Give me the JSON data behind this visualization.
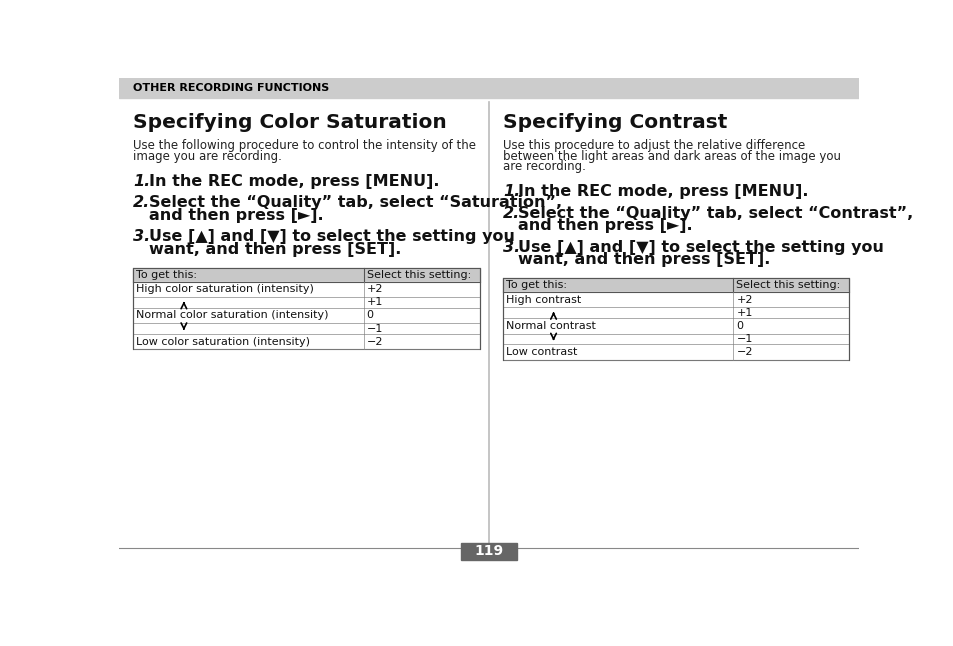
{
  "bg_color": "#ffffff",
  "header_bg": "#cccccc",
  "header_text": "OTHER RECORDING FUNCTIONS",
  "header_text_color": "#000000",
  "page_number": "119",
  "left_section": {
    "title": "Specifying Color Saturation",
    "intro_lines": [
      "Use the following procedure to control the intensity of the",
      "image you are recording."
    ],
    "steps": [
      {
        "num": "1.",
        "lines": [
          "In the REC mode, press [MENU]."
        ]
      },
      {
        "num": "2.",
        "lines": [
          "Select the “Quality” tab, select “Saturation”,",
          "and then press [►]."
        ]
      },
      {
        "num": "3.",
        "lines": [
          "Use [▲] and [▼] to select the setting you",
          "want, and then press [SET]."
        ]
      }
    ],
    "table_header": [
      "To get this:",
      "Select this setting:"
    ],
    "table_rows": [
      [
        "High color saturation (intensity)",
        "+2"
      ],
      [
        "arrow_up",
        "+1"
      ],
      [
        "Normal color saturation (intensity)",
        "0"
      ],
      [
        "arrow_down",
        "−1"
      ],
      [
        "Low color saturation (intensity)",
        "−2"
      ]
    ]
  },
  "right_section": {
    "title": "Specifying Contrast",
    "intro_lines": [
      "Use this procedure to adjust the relative difference",
      "between the light areas and dark areas of the image you",
      "are recording."
    ],
    "steps": [
      {
        "num": "1.",
        "lines": [
          "In the REC mode, press [MENU]."
        ]
      },
      {
        "num": "2.",
        "lines": [
          "Select the “Quality” tab, select “Contrast”,",
          "and then press [►]."
        ]
      },
      {
        "num": "3.",
        "lines": [
          "Use [▲] and [▼] to select the setting you",
          "want, and then press [SET]."
        ]
      }
    ],
    "table_header": [
      "To get this:",
      "Select this setting:"
    ],
    "table_rows": [
      [
        "High contrast",
        "+2"
      ],
      [
        "arrow_up",
        "+1"
      ],
      [
        "Normal contrast",
        "0"
      ],
      [
        "arrow_down",
        "−1"
      ],
      [
        "Low contrast",
        "−2"
      ]
    ]
  }
}
